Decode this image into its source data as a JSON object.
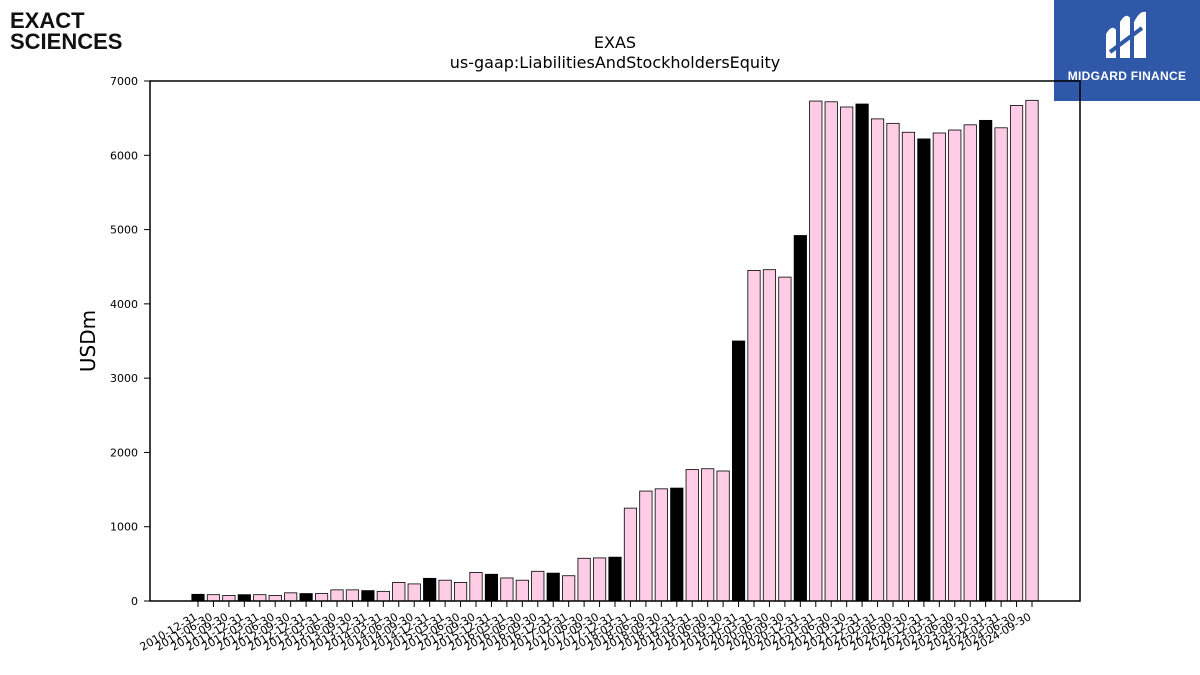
{
  "logos": {
    "left_line1": "EXACT",
    "left_line2": "SCIENCES",
    "right_text": "MIDGARD FINANCE",
    "right_bg": "#2f58a8"
  },
  "chart_data": {
    "type": "bar",
    "title": "EXAS",
    "subtitle": "us-gaap:LiabilitiesAndStockholdersEquity",
    "ylabel": "USDm",
    "xlabel": "",
    "ylim": [
      0,
      7000
    ],
    "yticks": [
      0,
      1000,
      2000,
      3000,
      4000,
      5000,
      6000,
      7000
    ],
    "grid": false,
    "colors": {
      "pink": "#ffcce5",
      "black": "#000000"
    },
    "categories": [
      "2010-12-31",
      "2011-06-30",
      "2011-09-30",
      "2011-12-31",
      "2012-03-31",
      "2012-06-30",
      "2012-09-30",
      "2012-12-31",
      "2013-03-31",
      "2013-06-30",
      "2013-09-30",
      "2013-12-31",
      "2014-03-31",
      "2014-06-30",
      "2014-09-30",
      "2014-12-31",
      "2015-03-31",
      "2015-06-30",
      "2015-09-30",
      "2015-12-31",
      "2016-03-31",
      "2016-06-30",
      "2016-09-30",
      "2016-12-31",
      "2017-03-31",
      "2017-06-30",
      "2017-09-30",
      "2017-12-31",
      "2018-03-31",
      "2018-06-30",
      "2018-09-30",
      "2018-12-31",
      "2019-03-31",
      "2019-06-30",
      "2019-09-30",
      "2019-12-31",
      "2020-03-31",
      "2020-06-30",
      "2020-09-30",
      "2020-12-31",
      "2021-03-31",
      "2021-06-30",
      "2021-09-30",
      "2021-12-31",
      "2022-03-31",
      "2022-06-30",
      "2022-09-30",
      "2022-12-31",
      "2023-03-31",
      "2023-06-30",
      "2023-09-30",
      "2023-12-31",
      "2024-03-31",
      "2024-06-30",
      "2024-09-30"
    ],
    "values": [
      90,
      85,
      75,
      85,
      85,
      75,
      110,
      100,
      100,
      150,
      150,
      140,
      130,
      250,
      230,
      305,
      280,
      250,
      385,
      360,
      310,
      280,
      400,
      375,
      340,
      575,
      580,
      590,
      1250,
      1480,
      1510,
      1520,
      1770,
      1780,
      1750,
      3500,
      4450,
      4460,
      4360,
      4920,
      6730,
      6720,
      6650,
      6690,
      6490,
      6430,
      6310,
      6220,
      6300,
      6340,
      6410,
      6470,
      6370,
      6670,
      6740
    ],
    "bar_color": [
      "black",
      "pink",
      "pink",
      "black",
      "pink",
      "pink",
      "pink",
      "black",
      "pink",
      "pink",
      "pink",
      "black",
      "pink",
      "pink",
      "pink",
      "black",
      "pink",
      "pink",
      "pink",
      "black",
      "pink",
      "pink",
      "pink",
      "black",
      "pink",
      "pink",
      "pink",
      "black",
      "pink",
      "pink",
      "pink",
      "black",
      "pink",
      "pink",
      "pink",
      "black",
      "pink",
      "pink",
      "pink",
      "black",
      "pink",
      "pink",
      "pink",
      "black",
      "pink",
      "pink",
      "pink",
      "black",
      "pink",
      "pink",
      "pink",
      "black",
      "pink",
      "pink",
      "pink"
    ]
  }
}
